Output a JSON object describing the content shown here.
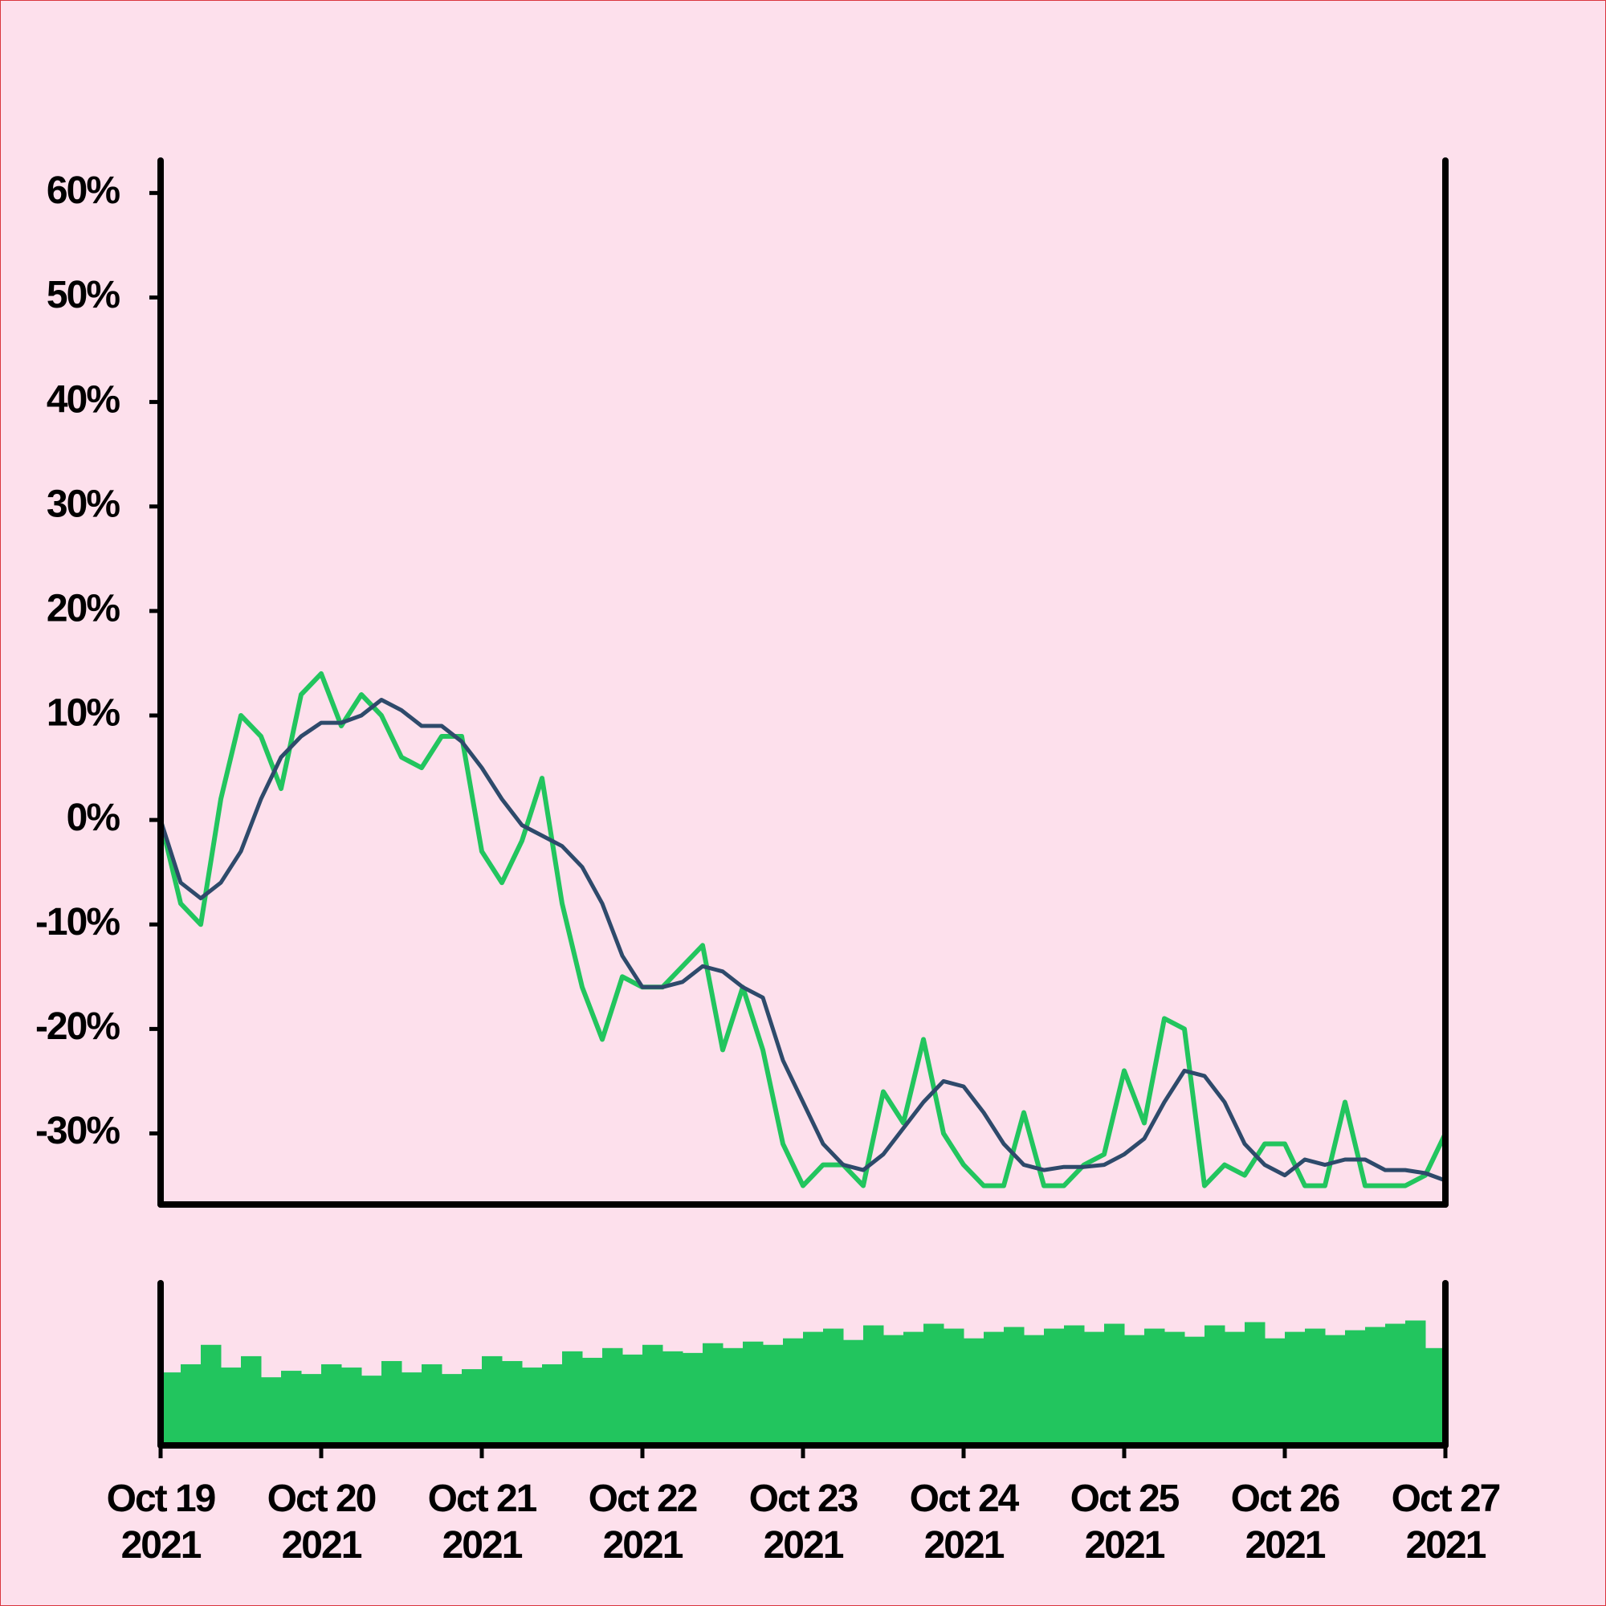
{
  "chart_data": [
    {
      "type": "line",
      "xlim": [
        "2021-10-19",
        "2021-10-27"
      ],
      "ylim": [
        -36.8,
        63.1
      ],
      "yticks": [
        {
          "value": 60,
          "label": "60%"
        },
        {
          "value": 50,
          "label": "50%"
        },
        {
          "value": 40,
          "label": "40%"
        },
        {
          "value": 30,
          "label": "30%"
        },
        {
          "value": 20,
          "label": "20%"
        },
        {
          "value": 10,
          "label": "10%"
        },
        {
          "value": 0,
          "label": "0%"
        },
        {
          "value": -10,
          "label": "-10%"
        },
        {
          "value": -20,
          "label": "-20%"
        },
        {
          "value": -30,
          "label": "-30%"
        }
      ],
      "series": [
        {
          "color": "#22c55e",
          "values": [
            0,
            -8,
            -10,
            2,
            10,
            8,
            3,
            12,
            14,
            9,
            12,
            10,
            6,
            5,
            8,
            8,
            -3,
            -6,
            -2,
            4,
            -8,
            -16,
            -21,
            -15,
            -16,
            -16,
            -14,
            -12,
            -22,
            -16,
            -22,
            -31,
            -35,
            -33,
            -33,
            -35,
            -26,
            -29,
            -21,
            -30,
            -33,
            -35,
            -35,
            -28,
            -35,
            -35,
            -33,
            -32,
            -24,
            -29,
            -19,
            -20,
            -35,
            -33,
            -34,
            -31,
            -31,
            -35,
            -35,
            -27,
            -35,
            -35,
            -35,
            -34,
            -30
          ]
        },
        {
          "color": "#2e4a6b",
          "values": [
            0,
            -6,
            -7.5,
            -6,
            -3,
            2,
            6,
            8,
            9.3,
            9.3,
            10,
            11.5,
            10.5,
            9,
            9,
            7.5,
            5,
            2,
            -0.5,
            -1.5,
            -2.5,
            -4.5,
            -8,
            -13,
            -16,
            -16,
            -15.5,
            -14,
            -14.5,
            -16,
            -17,
            -23,
            -27,
            -31,
            -33,
            -33.5,
            -32,
            -29.5,
            -27,
            -25,
            -25.5,
            -28,
            -31,
            -33,
            -33.5,
            -33.2,
            -33.2,
            -33,
            -32,
            -30.5,
            -27,
            -24,
            -24.5,
            -27,
            -31,
            -33,
            -34,
            -32.5,
            -33,
            -32.5,
            -32.5,
            -33.5,
            -33.5,
            -33.8,
            -34.5
          ]
        }
      ]
    },
    {
      "type": "bar",
      "color": "#22c55e",
      "xlim": [
        "2021-10-19",
        "2021-10-27"
      ],
      "ylim": [
        0,
        100
      ],
      "values": [
        45,
        50,
        62,
        48,
        55,
        42,
        46,
        44,
        50,
        48,
        43,
        52,
        45,
        50,
        44,
        47,
        55,
        52,
        48,
        50,
        58,
        54,
        60,
        56,
        62,
        58,
        57,
        63,
        60,
        64,
        62,
        66,
        70,
        72,
        65,
        74,
        68,
        70,
        75,
        72,
        66,
        70,
        73,
        68,
        72,
        74,
        70,
        75,
        68,
        72,
        70,
        67,
        74,
        70,
        76,
        66,
        70,
        72,
        68,
        71,
        73,
        75,
        77,
        60
      ],
      "xticks": [
        {
          "value": "2021-10-19",
          "label": "Oct 19 2021"
        },
        {
          "value": "2021-10-20",
          "label": "Oct 20 2021"
        },
        {
          "value": "2021-10-21",
          "label": "Oct 21 2021"
        },
        {
          "value": "2021-10-22",
          "label": "Oct 22 2021"
        },
        {
          "value": "2021-10-23",
          "label": "Oct 23 2021"
        },
        {
          "value": "2021-10-24",
          "label": "Oct 24 2021"
        },
        {
          "value": "2021-10-25",
          "label": "Oct 25 2021"
        },
        {
          "value": "2021-10-26",
          "label": "Oct 26 2021"
        },
        {
          "value": "2021-10-27",
          "label": "Oct 27 2021"
        }
      ]
    }
  ]
}
